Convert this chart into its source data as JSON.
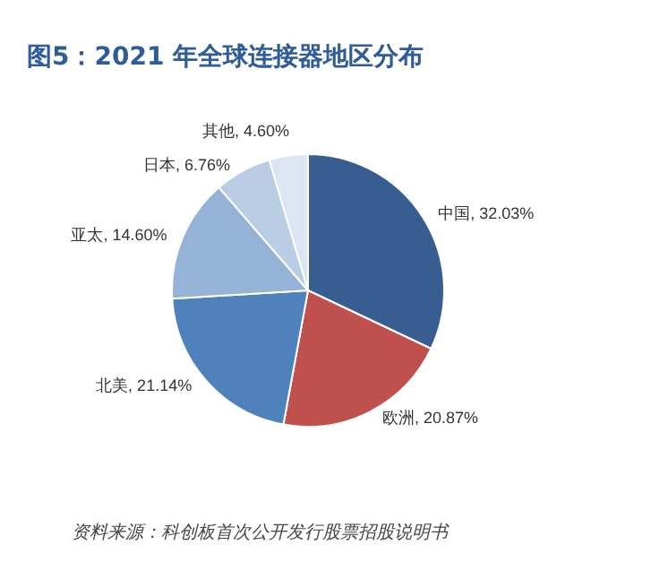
{
  "chart_data": {
    "type": "pie",
    "title": "图5：2021 年全球连接器地区分布",
    "categories": [
      "中国",
      "欧洲",
      "北美",
      "亚太",
      "日本",
      "其他"
    ],
    "values": [
      32.03,
      20.87,
      21.14,
      14.6,
      6.76,
      4.6
    ],
    "value_labels": [
      "32.03%",
      "20.87%",
      "21.14%",
      "14.60%",
      "6.76%",
      "4.60%"
    ],
    "colors": [
      "#375d91",
      "#c0504d",
      "#4f81bd",
      "#95b3d7",
      "#b9cde5",
      "#dce6f2"
    ],
    "annotations": [
      "资料来源：科创板首次公开发行股票招股说明书"
    ],
    "legend": false
  }
}
